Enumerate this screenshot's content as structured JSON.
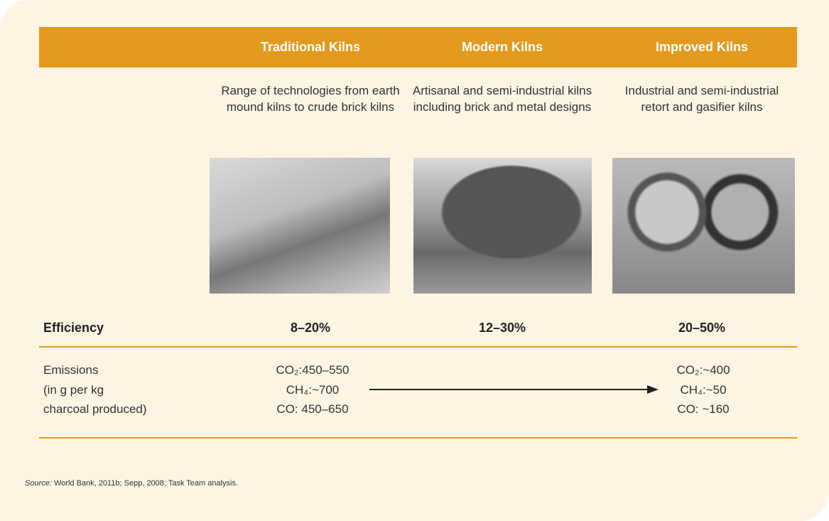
{
  "table": {
    "columns": [
      "Traditional Kilns",
      "Modern Kilns",
      "Improved Kilns"
    ],
    "descriptions": [
      "Range of technologies from earth mound kilns to crude brick kilns",
      "Artisanal and semi-industrial kilns including brick and metal designs",
      "Industrial and semi-industrial retort and gasifier kilns"
    ],
    "efficiency": {
      "label": "Efficiency",
      "values": [
        "8–20%",
        "12–30%",
        "20–50%"
      ]
    },
    "emissions": {
      "label_lines": [
        "Emissions",
        "(in g per kg",
        "charcoal produced)"
      ],
      "traditional": [
        "CO₂:450–550",
        "CH₄:~700",
        "CO: 450–650"
      ],
      "improved": [
        "CO₂:~400",
        "CH₄:~50",
        "CO: ~160"
      ]
    }
  },
  "source": {
    "label": "Source:",
    "text": "World Bank, 2011b; Sepp, 2008; Task Team analysis."
  }
}
